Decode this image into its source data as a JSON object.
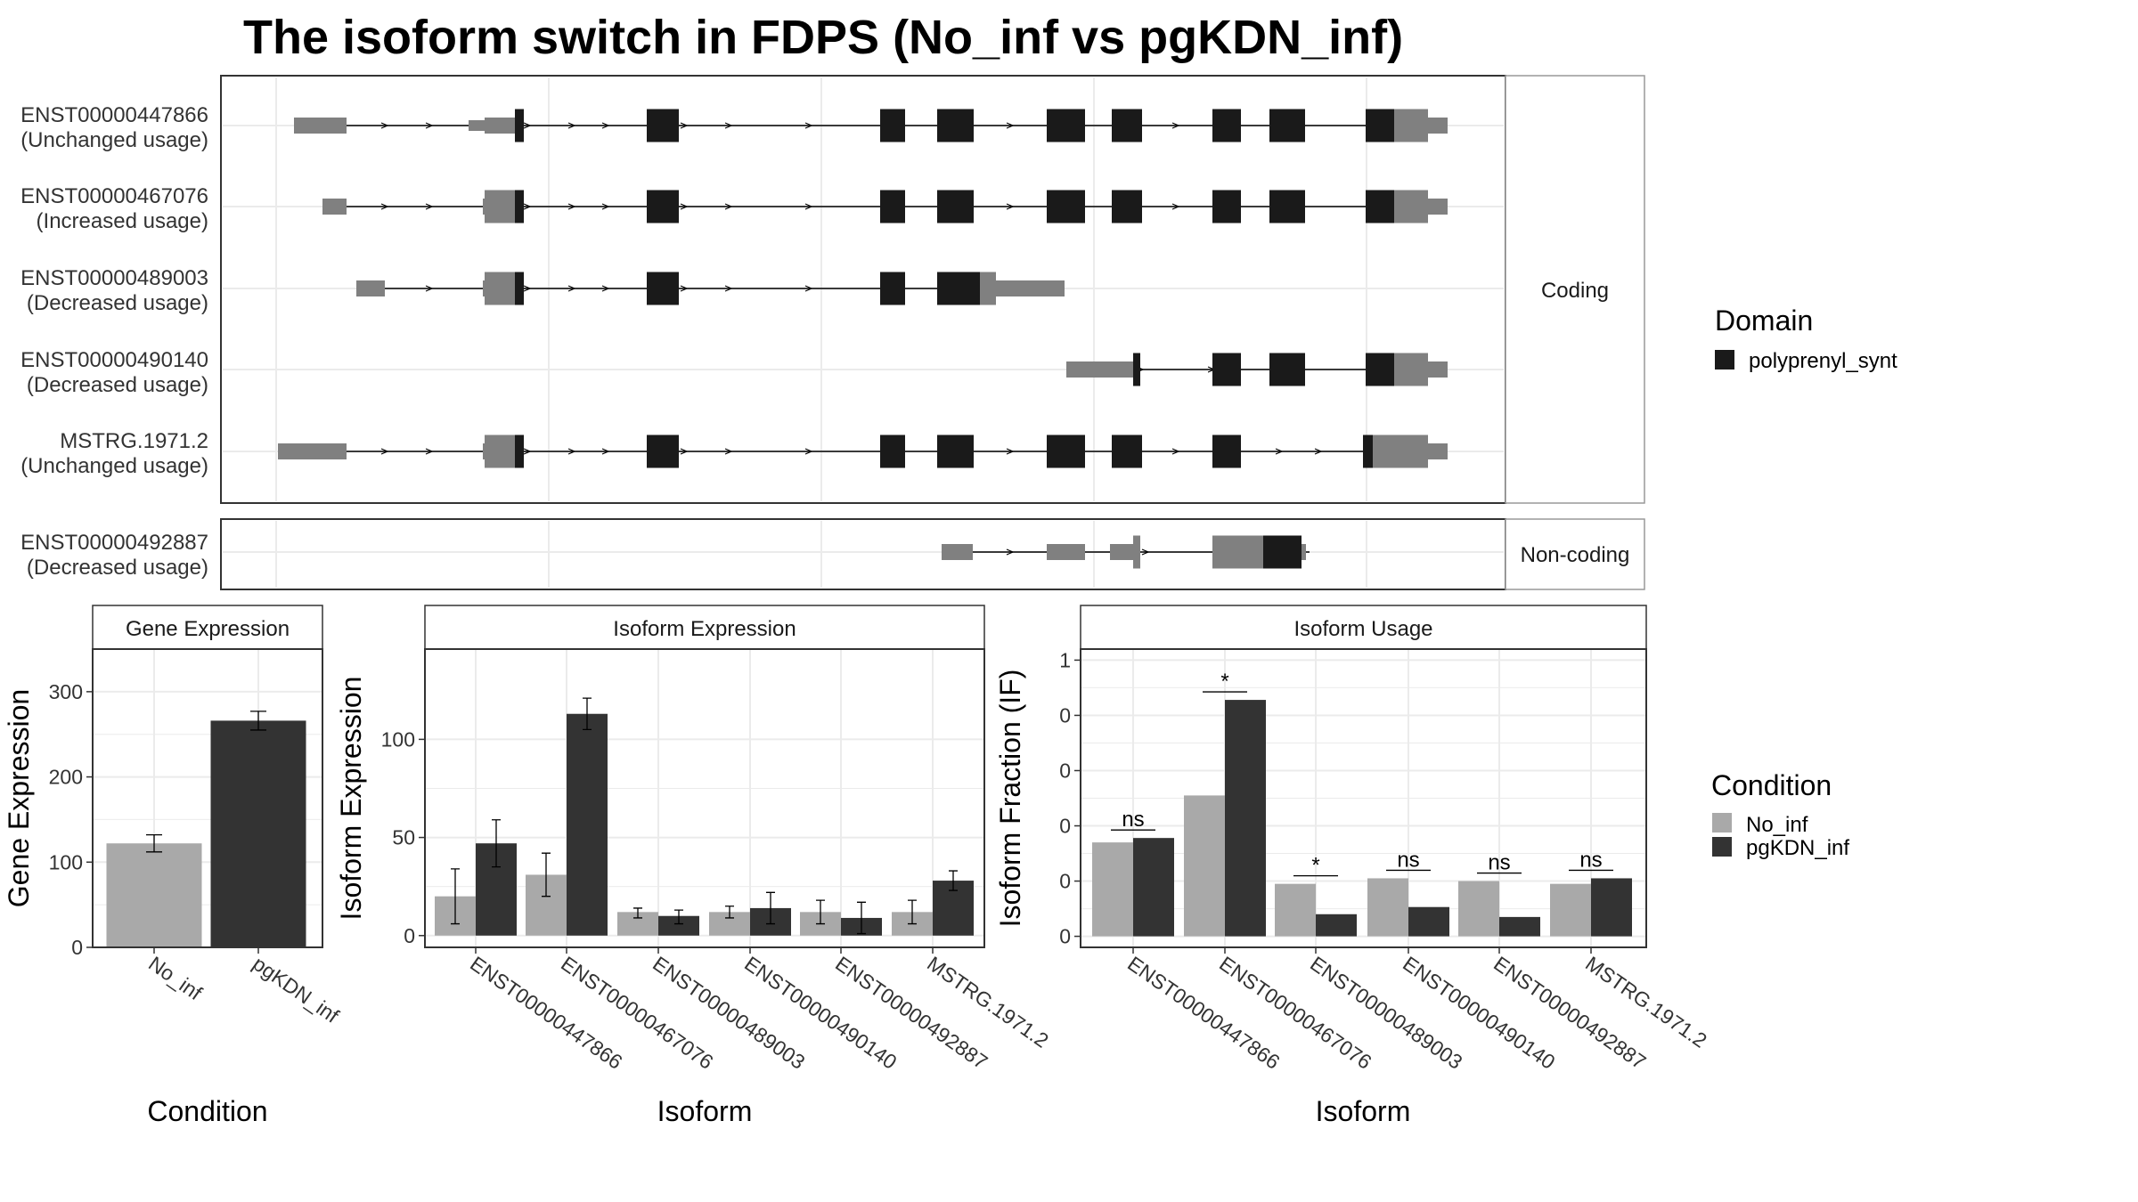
{
  "title": "The isoform switch in FDPS (No_inf vs pgKDN_inf)",
  "colors": {
    "utr": "#808080",
    "domain": "#1a1a1a",
    "no_inf": "#a9a9a9",
    "pgkdn_inf": "#333333",
    "grid": "#ebebeb",
    "panel_border": "#333333"
  },
  "structure": {
    "coding_strip": "Coding",
    "noncoding_strip": "Non-coding",
    "coding_isoforms": [
      {
        "id": "ENST00000447866",
        "usage": "(Unchanged usage)"
      },
      {
        "id": "ENST00000467076",
        "usage": "(Increased usage)"
      },
      {
        "id": "ENST00000489003",
        "usage": "(Decreased usage)"
      },
      {
        "id": "ENST00000490140",
        "usage": "(Decreased usage)"
      },
      {
        "id": "MSTRG.1971.2",
        "usage": "(Unchanged usage)"
      }
    ],
    "noncoding_isoforms": [
      {
        "id": "ENST00000492887",
        "usage": "(Decreased usage)"
      }
    ]
  },
  "legend_domain": {
    "title": "Domain",
    "items": [
      {
        "label": "polyprenyl_synt",
        "color": "#1a1a1a"
      }
    ]
  },
  "legend_condition": {
    "title": "Condition",
    "items": [
      {
        "label": "No_inf",
        "color": "#a9a9a9"
      },
      {
        "label": "pgKDN_inf",
        "color": "#333333"
      }
    ]
  },
  "chart_data": [
    {
      "type": "bar",
      "strip": "Gene Expression",
      "xlabel": "Condition",
      "ylabel": "Gene Expression",
      "categories": [
        "No_inf",
        "pgKDN_inf"
      ],
      "values": [
        122,
        266
      ],
      "errors": [
        [
          112,
          132
        ],
        [
          255,
          277
        ]
      ],
      "ylim": [
        0,
        350
      ],
      "yticks": [
        0,
        100,
        200,
        300
      ]
    },
    {
      "type": "bar",
      "strip": "Isoform Expression",
      "xlabel": "Isoform",
      "ylabel": "Isoform Expression",
      "categories": [
        "ENST00000447866",
        "ENST00000467076",
        "ENST00000489003",
        "ENST00000490140",
        "ENST00000492887",
        "MSTRG.1971.2"
      ],
      "series": [
        {
          "name": "No_inf",
          "values": [
            20,
            31,
            12,
            12,
            12,
            12
          ],
          "errors": [
            [
              6,
              34
            ],
            [
              20,
              42
            ],
            [
              9,
              14
            ],
            [
              9,
              15
            ],
            [
              6,
              18
            ],
            [
              6,
              18
            ]
          ]
        },
        {
          "name": "pgKDN_inf",
          "values": [
            47,
            113,
            10,
            14,
            9,
            28
          ],
          "errors": [
            [
              35,
              59
            ],
            [
              105,
              121
            ],
            [
              6,
              13
            ],
            [
              6,
              22
            ],
            [
              1,
              17
            ],
            [
              23,
              33
            ]
          ]
        }
      ],
      "ylim": [
        -6,
        146
      ],
      "yticks": [
        0,
        50,
        100
      ]
    },
    {
      "type": "bar",
      "strip": "Isoform Usage",
      "xlabel": "Isoform",
      "ylabel": "Isoform Fraction (IF)",
      "categories": [
        "ENST00000447866",
        "ENST00000467076",
        "ENST00000489003",
        "ENST00000490140",
        "ENST00000492887",
        "MSTRG.1971.2"
      ],
      "series": [
        {
          "name": "No_inf",
          "values": [
            0.17,
            0.255,
            0.095,
            0.105,
            0.1,
            0.095
          ]
        },
        {
          "name": "pgKDN_inf",
          "values": [
            0.178,
            0.428,
            0.04,
            0.053,
            0.035,
            0.105
          ]
        }
      ],
      "significance": [
        "ns",
        "*",
        "*",
        "ns",
        "ns",
        "ns"
      ],
      "ylim": [
        -0.02,
        0.52
      ],
      "yticks": [
        0.0,
        0.1,
        0.2,
        0.3,
        0.4,
        0.5
      ]
    }
  ]
}
